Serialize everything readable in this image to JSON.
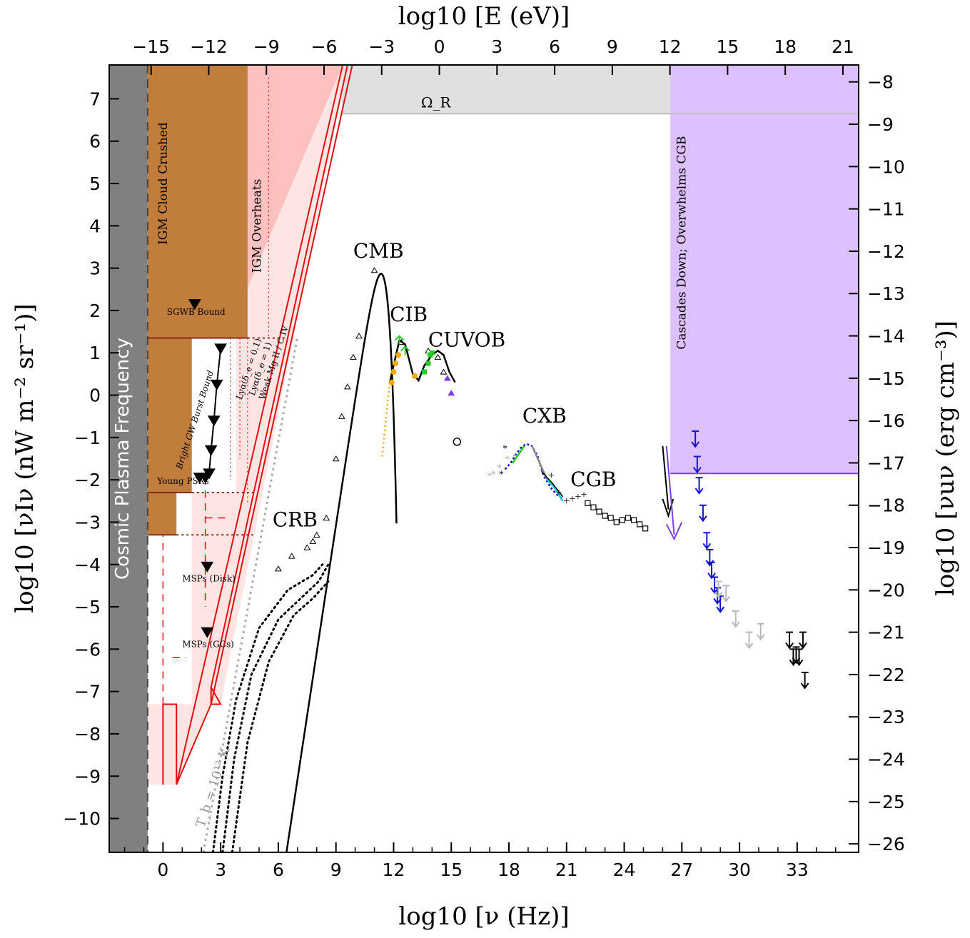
{
  "chart_data": {
    "type": "scatter",
    "xlabel": "log10 [ν (Hz)]",
    "ylabel": "log10 [νIν (nW m⁻² sr⁻¹)]",
    "x2label": "log10 [E (eV)]",
    "y2label": "log10 [νuν (erg cm⁻³)]",
    "xlim": [
      -2.8,
      36.2
    ],
    "ylim": [
      -10.8,
      7.8
    ],
    "x_ticks": [
      0,
      3,
      6,
      9,
      12,
      15,
      18,
      21,
      24,
      27,
      30,
      33
    ],
    "y_ticks": [
      -10,
      -9,
      -8,
      -7,
      -6,
      -5,
      -4,
      -3,
      -2,
      -1,
      0,
      1,
      2,
      3,
      4,
      5,
      6,
      7
    ],
    "x2_ticks": [
      -15,
      -12,
      -9,
      -6,
      -3,
      0,
      3,
      6,
      9,
      12,
      15,
      18,
      21
    ],
    "y2_ticks": [
      -26,
      -25,
      -24,
      -23,
      -22,
      -21,
      -20,
      -19,
      -18,
      -17,
      -16,
      -15,
      -14,
      -13,
      -12,
      -11,
      -10,
      -9,
      -8
    ],
    "x_tick_labels": [
      "0",
      "3",
      "6",
      "9",
      "12",
      "15",
      "18",
      "21",
      "24",
      "27",
      "30",
      "33"
    ],
    "y_tick_labels": [
      "−10",
      "−9",
      "−8",
      "−7",
      "−6",
      "−5",
      "−4",
      "−3",
      "−2",
      "−1",
      "0",
      "1",
      "2",
      "3",
      "4",
      "5",
      "6",
      "7"
    ],
    "x2_tick_labels": [
      "−15",
      "−12",
      "−9",
      "−6",
      "−3",
      "0",
      "3",
      "6",
      "9",
      "12",
      "15",
      "18",
      "21"
    ],
    "y2_tick_labels": [
      "−26",
      "−25",
      "−24",
      "−23",
      "−22",
      "−21",
      "−20",
      "−19",
      "−18",
      "−17",
      "−16",
      "−15",
      "−14",
      "−13",
      "−12",
      "−11",
      "−10",
      "−9",
      "−8"
    ],
    "regions": {
      "plasma": {
        "x": [
          -2.8,
          -0.8
        ],
        "label": "Cosmic Plasma Frequency"
      },
      "cloud": {
        "x": [
          -0.8,
          4.4
        ],
        "ylow": 1.35,
        "label": "IGM Cloud Crushed"
      },
      "overheats": {
        "x": [
          4.4,
          9.3
        ],
        "label": "IGM Overheats"
      },
      "omega_r": {
        "y": 6.65,
        "label": "Ω_R"
      },
      "cascade": {
        "x": [
          26.4,
          36.2
        ],
        "ylow": -1.85,
        "label": "Cascades Down; Overwhelms CGB"
      }
    },
    "labels": {
      "cmb": "CMB",
      "cib": "CIB",
      "cuvob": "CUVOB",
      "cxb": "CXB",
      "cgb": "CGB",
      "crb": "CRB",
      "sgwb": "SGWB Bound",
      "burst": "Bright GW Burst Bound",
      "psr": "Young PSRs",
      "msp_disk": "MSPs (Disk)",
      "msp_gc": "MSPs (GCs)",
      "lya1": "Lyα(δ_e = 0.1)",
      "lya2": "Lyα(δ_e = 1)",
      "weak": "Weak Mg II / C IV",
      "tb": "T_b = 10¹² K"
    },
    "series": [
      {
        "values": [
          [
            11.0,
            2.95
          ],
          [
            10.2,
            1.4
          ],
          [
            9.9,
            0.9
          ],
          [
            9.6,
            0.2
          ],
          [
            9.3,
            -0.5
          ],
          [
            9.0,
            -1.5
          ],
          [
            8.5,
            -2.9
          ],
          [
            8.0,
            -3.3
          ],
          [
            7.8,
            -3.45
          ],
          [
            7.5,
            -3.6
          ],
          [
            6.7,
            -3.8
          ],
          [
            6.0,
            -4.1
          ],
          [
            12.4,
            1.25
          ],
          [
            13.8,
            1.05
          ],
          [
            14.3,
            0.9
          ],
          [
            14.6,
            0.55
          ]
        ],
        "color": "#000000"
      },
      {
        "values": [
          [
            11.9,
            0.3
          ],
          [
            12.0,
            0.55
          ],
          [
            12.1,
            0.75
          ],
          [
            12.25,
            0.95
          ],
          [
            13.1,
            0.45
          ]
        ],
        "color": "#f5a800"
      },
      {
        "values": [
          [
            13.6,
            0.55
          ],
          [
            13.8,
            0.75
          ],
          [
            13.9,
            0.95
          ],
          [
            14.0,
            1.0
          ]
        ],
        "color": "#22cc22"
      },
      {
        "values": [
          [
            14.8,
            0.4
          ],
          [
            15.0,
            0.05
          ]
        ],
        "color": "#7a3fe0"
      },
      {
        "values": [
          [
            17.0,
            -1.9
          ],
          [
            17.2,
            -1.85
          ],
          [
            17.5,
            -1.7
          ],
          [
            17.9,
            -1.5
          ],
          [
            18.3,
            -1.45
          ]
        ],
        "color": "#aaaaaa"
      },
      {
        "values": [
          [
            17.6,
            -1.85
          ],
          [
            17.8,
            -1.25
          ]
        ],
        "color": "#000000"
      },
      {
        "values": [
          [
            22.1,
            -2.55
          ],
          [
            22.4,
            -2.65
          ],
          [
            22.7,
            -2.75
          ],
          [
            23.0,
            -2.85
          ],
          [
            23.3,
            -2.9
          ],
          [
            23.6,
            -3.0
          ],
          [
            23.9,
            -2.95
          ],
          [
            24.2,
            -2.9
          ],
          [
            24.5,
            -2.95
          ],
          [
            24.8,
            -3.05
          ],
          [
            25.1,
            -3.15
          ]
        ],
        "color": "#000000"
      },
      {
        "values": [
          [
            21.0,
            -2.5
          ],
          [
            21.3,
            -2.45
          ],
          [
            21.6,
            -2.4
          ],
          [
            21.9,
            -2.35
          ],
          [
            20.2,
            -1.9
          ],
          [
            20.6,
            -2.3
          ]
        ],
        "color": "#000000"
      }
    ],
    "bounds": [
      {
        "label": "SGWB Bound",
        "values": [
          [
            1.65,
            2.15
          ]
        ]
      },
      {
        "label": "Bright GW Burst Bound",
        "values": [
          [
            3.0,
            1.1
          ],
          [
            2.8,
            0.25
          ],
          [
            2.65,
            -0.6
          ],
          [
            2.5,
            -1.3
          ],
          [
            2.4,
            -1.85
          ],
          [
            2.2,
            -1.95
          ]
        ]
      },
      {
        "label": "Young PSRs",
        "values": [
          [
            1.9,
            -1.95
          ]
        ]
      },
      {
        "label": "MSPs (Disk)",
        "values": [
          [
            2.3,
            -4.05
          ]
        ]
      },
      {
        "label": "MSPs (GCs)",
        "values": [
          [
            2.3,
            -5.6
          ]
        ]
      }
    ],
    "upper_limits": [
      {
        "color": "#1515d0",
        "values": [
          [
            27.7,
            -0.85
          ],
          [
            27.8,
            -1.45
          ],
          [
            27.9,
            -1.95
          ],
          [
            28.1,
            -2.6
          ],
          [
            28.3,
            -3.25
          ],
          [
            28.45,
            -3.65
          ],
          [
            28.55,
            -3.95
          ],
          [
            28.7,
            -4.3
          ],
          [
            28.85,
            -4.55
          ],
          [
            29.0,
            -4.75
          ]
        ]
      },
      {
        "color": "#bbbbbb",
        "values": [
          [
            29.3,
            -4.5
          ],
          [
            29.8,
            -5.1
          ],
          [
            30.5,
            -5.6
          ],
          [
            31.1,
            -5.4
          ],
          [
            28.9,
            -4.4
          ]
        ]
      },
      {
        "color": "#000000",
        "values": [
          [
            32.6,
            -5.6
          ],
          [
            32.8,
            -6.0
          ],
          [
            32.95,
            -5.95
          ],
          [
            33.1,
            -6.0
          ],
          [
            33.3,
            -5.6
          ],
          [
            33.4,
            -6.55
          ]
        ]
      }
    ]
  }
}
